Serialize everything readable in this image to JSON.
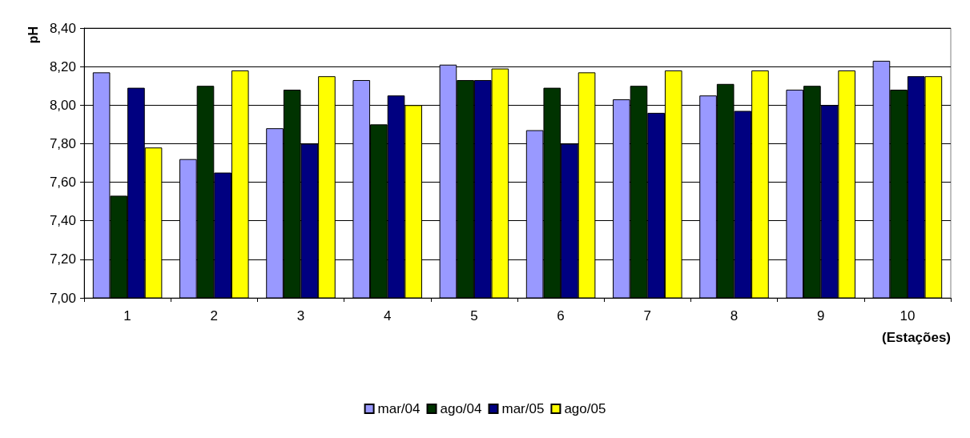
{
  "chart_data": {
    "type": "bar",
    "ylabel": "pH",
    "xlabel": "(Estações)",
    "categories": [
      "1",
      "2",
      "3",
      "4",
      "5",
      "6",
      "7",
      "8",
      "9",
      "10"
    ],
    "series": [
      {
        "name": "mar/04",
        "color": "#9999ff",
        "values": [
          8.17,
          7.72,
          7.88,
          8.13,
          8.21,
          7.87,
          8.03,
          8.05,
          8.08,
          8.23
        ]
      },
      {
        "name": "ago/04",
        "color": "#003300",
        "values": [
          7.53,
          8.1,
          8.08,
          7.9,
          8.13,
          8.09,
          8.1,
          8.11,
          8.1,
          8.08
        ]
      },
      {
        "name": "mar/05",
        "color": "#000080",
        "values": [
          8.09,
          7.65,
          7.8,
          8.05,
          8.13,
          7.8,
          7.96,
          7.97,
          8.0,
          8.15
        ]
      },
      {
        "name": "ago/05",
        "color": "#ffff00",
        "values": [
          7.78,
          8.18,
          8.15,
          8.0,
          8.19,
          8.17,
          8.18,
          8.18,
          8.18,
          8.15
        ]
      }
    ],
    "ylim": [
      7.0,
      8.4
    ],
    "yticks": [
      {
        "value": 7.0,
        "label": "7,00"
      },
      {
        "value": 7.2,
        "label": "7,20"
      },
      {
        "value": 7.4,
        "label": "7,40"
      },
      {
        "value": 7.6,
        "label": "7,60"
      },
      {
        "value": 7.8,
        "label": "7,80"
      },
      {
        "value": 8.0,
        "label": "8,00"
      },
      {
        "value": 8.2,
        "label": "8,20"
      },
      {
        "value": 8.4,
        "label": "8,40"
      }
    ],
    "grid": "y",
    "legend": "bottom"
  }
}
